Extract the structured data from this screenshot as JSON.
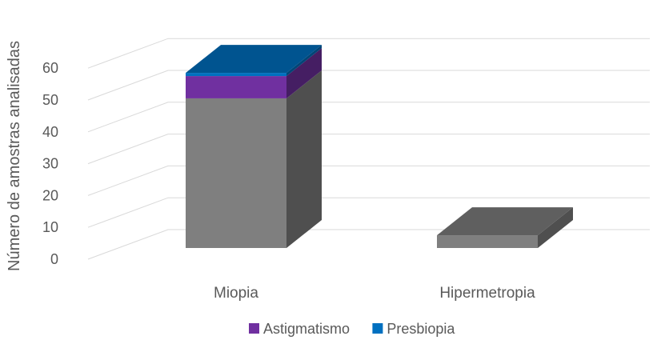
{
  "chart_data": {
    "type": "bar",
    "stacked": true,
    "three_d": true,
    "categories": [
      "Miopia",
      "Hipermetropia"
    ],
    "series": [
      {
        "name": "",
        "values": [
          47,
          4
        ],
        "color": "#7f7f7f"
      },
      {
        "name": "Astigmatismo",
        "values": [
          7,
          0
        ],
        "color": "#7030a0"
      },
      {
        "name": "Presbiopia",
        "values": [
          1,
          0
        ],
        "color": "#0070c0"
      }
    ],
    "title": "",
    "xlabel": "",
    "ylabel": "Número de amostras analisadas",
    "ylim": [
      0,
      60
    ],
    "yticks": [
      "0",
      "10",
      "20",
      "30",
      "40",
      "50",
      "60"
    ],
    "grid": true,
    "legend_position": "bottom"
  }
}
